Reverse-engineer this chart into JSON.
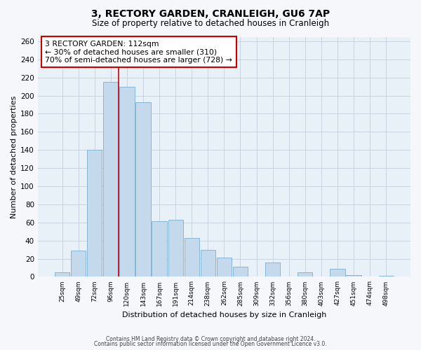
{
  "title": "3, RECTORY GARDEN, CRANLEIGH, GU6 7AP",
  "subtitle": "Size of property relative to detached houses in Cranleigh",
  "xlabel": "Distribution of detached houses by size in Cranleigh",
  "ylabel": "Number of detached properties",
  "bar_color": "#c5d9ec",
  "bar_edge_color": "#7bafd4",
  "background_color": "#e8f0f8",
  "fig_background": "#f5f7fa",
  "categories": [
    "25sqm",
    "49sqm",
    "72sqm",
    "96sqm",
    "120sqm",
    "143sqm",
    "167sqm",
    "191sqm",
    "214sqm",
    "238sqm",
    "262sqm",
    "285sqm",
    "309sqm",
    "332sqm",
    "356sqm",
    "380sqm",
    "403sqm",
    "427sqm",
    "451sqm",
    "474sqm",
    "498sqm"
  ],
  "values": [
    5,
    29,
    140,
    215,
    210,
    193,
    61,
    63,
    43,
    30,
    21,
    11,
    0,
    16,
    0,
    5,
    0,
    9,
    2,
    0,
    1
  ],
  "ylim": [
    0,
    265
  ],
  "yticks": [
    0,
    20,
    40,
    60,
    80,
    100,
    120,
    140,
    160,
    180,
    200,
    220,
    240,
    260
  ],
  "red_line_index": 3.5,
  "annotation_title": "3 RECTORY GARDEN: 112sqm",
  "annotation_line1": "← 30% of detached houses are smaller (310)",
  "annotation_line2": "70% of semi-detached houses are larger (728) →",
  "footnote1": "Contains HM Land Registry data © Crown copyright and database right 2024.",
  "footnote2": "Contains public sector information licensed under the Open Government Licence v3.0."
}
